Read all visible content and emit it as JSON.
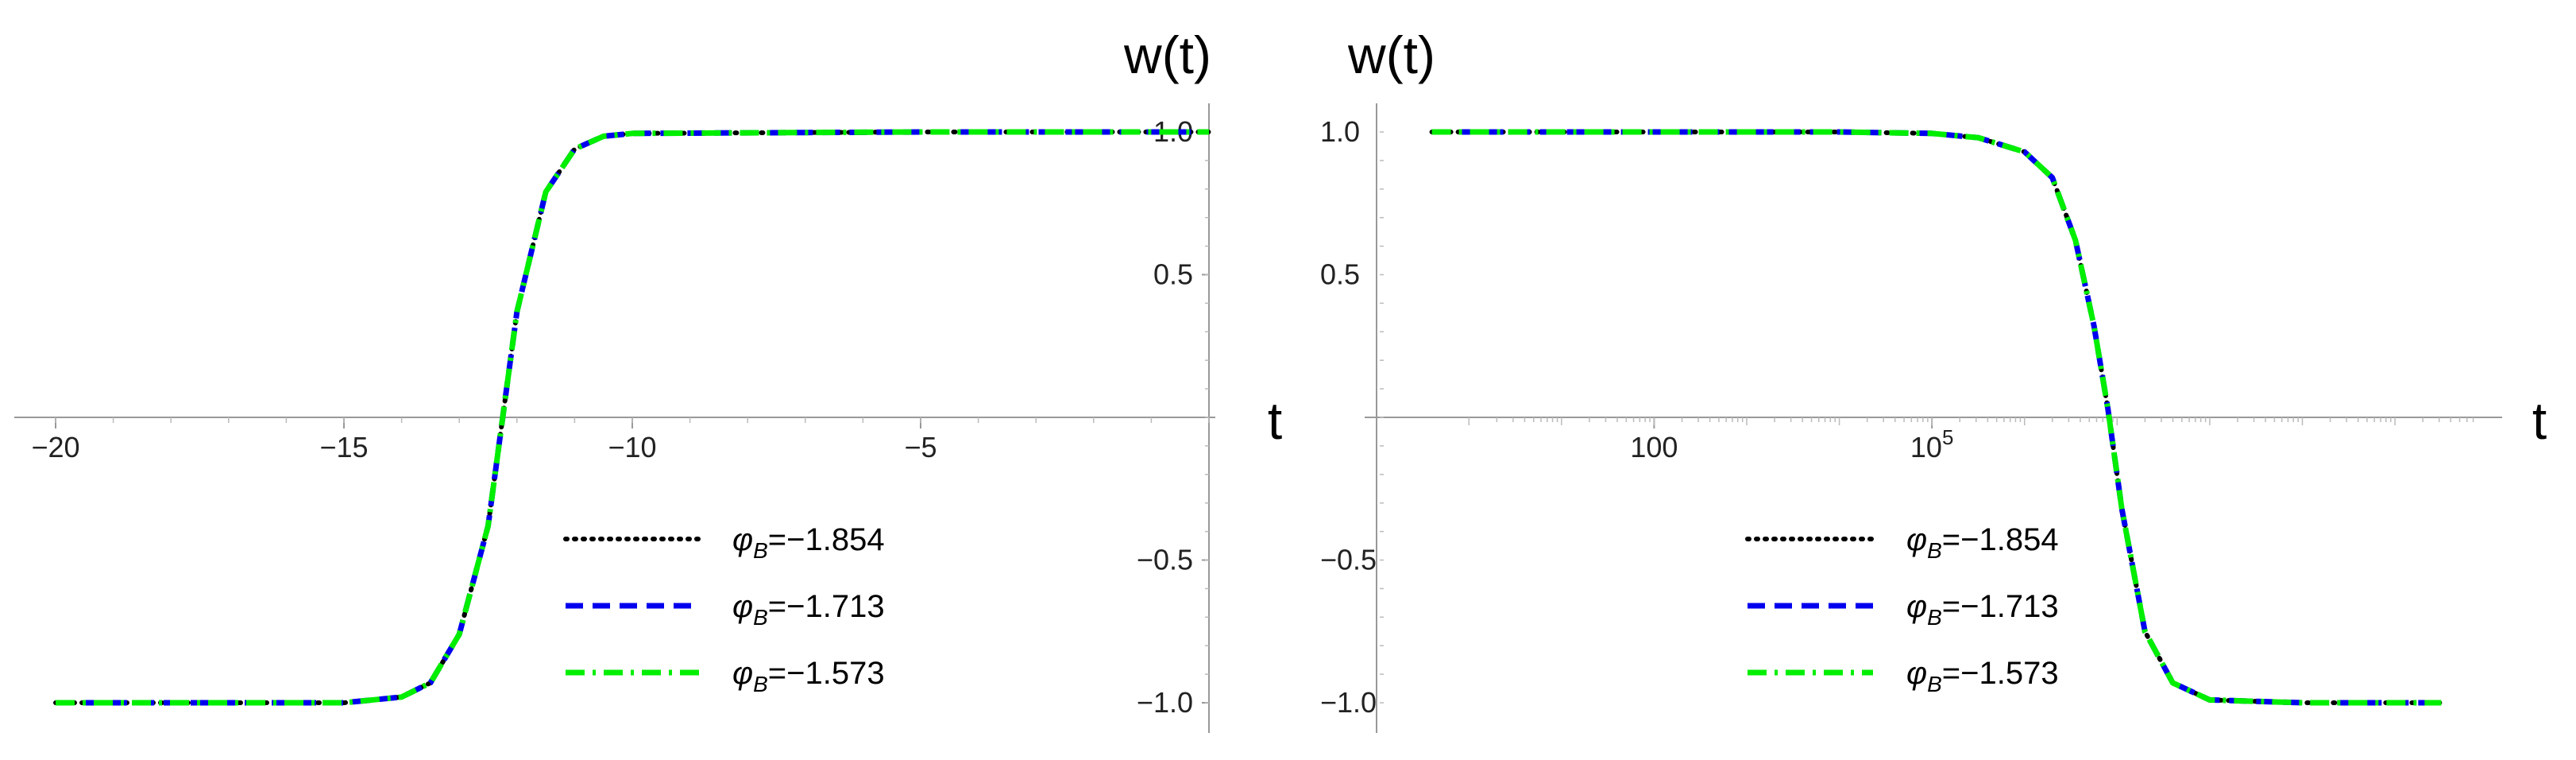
{
  "chart_data": [
    {
      "type": "line",
      "title": "",
      "xlabel": "t",
      "ylabel": "w(t)",
      "xlim": [
        -20,
        0
      ],
      "ylim": [
        -1.1,
        1.1
      ],
      "xticks": [
        {
          "value": -20,
          "label": "−20"
        },
        {
          "value": -15,
          "label": "−15"
        },
        {
          "value": -10,
          "label": "−10"
        },
        {
          "value": -5,
          "label": "−5"
        }
      ],
      "yticks": [
        {
          "value": 1.0,
          "label": "1.0"
        },
        {
          "value": 0.5,
          "label": "0.5"
        },
        {
          "value": -0.5,
          "label": "−0.5"
        },
        {
          "value": -1.0,
          "label": "−1.0"
        }
      ],
      "grid": false,
      "legend_position": "lower-right",
      "series": [
        {
          "name": "φB=−1.854",
          "legend_main": "φ",
          "legend_sub": "B",
          "legend_value": "=−1.854",
          "color": "#000000",
          "style": "dotted",
          "x": [
            -20,
            -15,
            -14,
            -13.5,
            -13,
            -12.5,
            -12.3,
            -12,
            -11.5,
            -11,
            -10.5,
            -10,
            -5,
            0
          ],
          "y": [
            -1.0,
            -1.0,
            -0.98,
            -0.93,
            -0.76,
            -0.38,
            -0.08,
            0.37,
            0.79,
            0.94,
            0.985,
            0.995,
            1.0,
            1.0
          ]
        },
        {
          "name": "φB=−1.713",
          "legend_main": "φ",
          "legend_sub": "B",
          "legend_value": "=−1.713",
          "color": "#0000ee",
          "style": "dashed",
          "x": [
            -20,
            -15,
            -14,
            -13.5,
            -13,
            -12.5,
            -12.3,
            -12,
            -11.5,
            -11,
            -10.5,
            -10,
            -5,
            0
          ],
          "y": [
            -1.0,
            -1.0,
            -0.98,
            -0.93,
            -0.76,
            -0.38,
            -0.08,
            0.37,
            0.79,
            0.94,
            0.985,
            0.995,
            1.0,
            1.0
          ]
        },
        {
          "name": "φB=−1.573",
          "legend_main": "φ",
          "legend_sub": "B",
          "legend_value": "=−1.573",
          "color": "#00ee00",
          "style": "dashdot",
          "x": [
            -20,
            -15,
            -14,
            -13.5,
            -13,
            -12.5,
            -12.3,
            -12,
            -11.5,
            -11,
            -10.5,
            -10,
            -5,
            0
          ],
          "y": [
            -1.0,
            -1.0,
            -0.98,
            -0.93,
            -0.76,
            -0.38,
            -0.08,
            0.37,
            0.79,
            0.94,
            0.985,
            0.995,
            1.0,
            1.0
          ]
        }
      ]
    },
    {
      "type": "line",
      "title": "",
      "xlabel": "t",
      "ylabel": "w(t)",
      "xscale": "log",
      "xlim_log10": [
        -0.8,
        10.9
      ],
      "ylim": [
        -1.1,
        1.1
      ],
      "xticks": [
        {
          "log10": 2,
          "label": "100"
        },
        {
          "log10": 5,
          "label": "10",
          "sup": "5"
        }
      ],
      "yticks": [
        {
          "value": 1.0,
          "label": "1.0"
        },
        {
          "value": 0.5,
          "label": "0.5"
        },
        {
          "value": -0.5,
          "label": "−0.5"
        },
        {
          "value": -1.0,
          "label": "−1.0"
        }
      ],
      "grid": false,
      "legend_position": "lower-center",
      "series": [
        {
          "name": "φB=−1.854",
          "legend_main": "φ",
          "legend_sub": "B",
          "legend_value": "=−1.854",
          "color": "#000000",
          "style": "dotted",
          "log10x": [
            -0.4,
            2,
            4,
            5,
            5.5,
            6.0,
            6.3,
            6.55,
            6.75,
            6.9,
            7.05,
            7.3,
            7.6,
            8.0,
            9,
            10.5
          ],
          "y": [
            1.0,
            1.0,
            1.0,
            0.995,
            0.98,
            0.93,
            0.84,
            0.62,
            0.32,
            0.03,
            -0.32,
            -0.75,
            -0.93,
            -0.99,
            -1.0,
            -1.0
          ]
        },
        {
          "name": "φB=−1.713",
          "legend_main": "φ",
          "legend_sub": "B",
          "legend_value": "=−1.713",
          "color": "#0000ee",
          "style": "dashed",
          "log10x": [
            -0.4,
            2,
            4,
            5,
            5.5,
            6.0,
            6.3,
            6.55,
            6.75,
            6.9,
            7.05,
            7.3,
            7.6,
            8.0,
            9,
            10.5
          ],
          "y": [
            1.0,
            1.0,
            1.0,
            0.995,
            0.98,
            0.93,
            0.84,
            0.62,
            0.32,
            0.03,
            -0.32,
            -0.75,
            -0.93,
            -0.99,
            -1.0,
            -1.0
          ]
        },
        {
          "name": "φB=−1.573",
          "legend_main": "φ",
          "legend_sub": "B",
          "legend_value": "=−1.573",
          "color": "#00ee00",
          "style": "dashdot",
          "log10x": [
            -0.4,
            2,
            4,
            5,
            5.5,
            6.0,
            6.3,
            6.55,
            6.75,
            6.9,
            7.05,
            7.3,
            7.6,
            8.0,
            9,
            10.5
          ],
          "y": [
            1.0,
            1.0,
            1.0,
            0.995,
            0.98,
            0.93,
            0.84,
            0.62,
            0.32,
            0.03,
            -0.32,
            -0.75,
            -0.93,
            -0.99,
            -1.0,
            -1.0
          ]
        }
      ]
    }
  ]
}
